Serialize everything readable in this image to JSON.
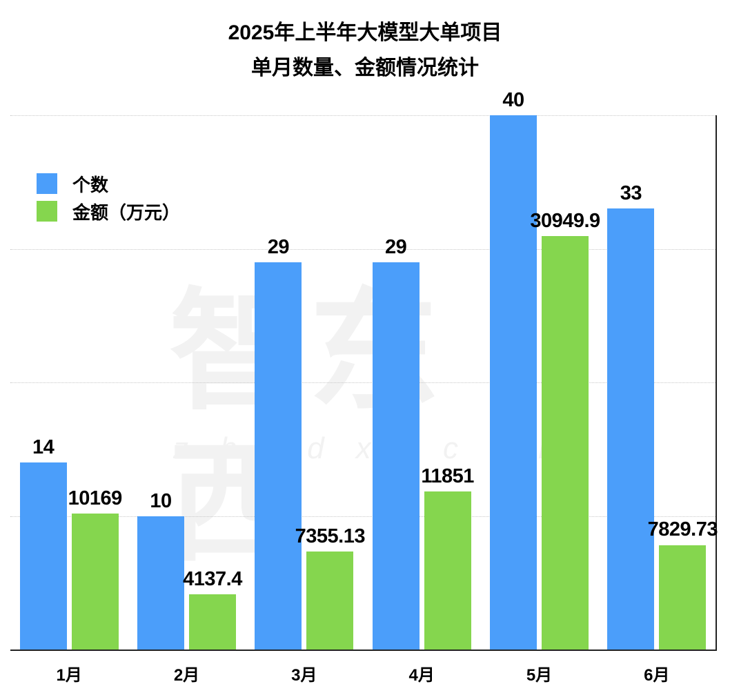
{
  "chart_data": {
    "type": "bar",
    "title": "2025年上半年大模型大单项目",
    "subtitle": "单月数量、金额情况统计",
    "categories": [
      "1月",
      "2月",
      "3月",
      "4月",
      "5月",
      "6月"
    ],
    "series": [
      {
        "name": "个数",
        "axis": "left",
        "color": "#4B9EFA",
        "values": [
          14,
          10,
          29,
          29,
          40,
          33
        ],
        "labels": [
          "14",
          "10",
          "29",
          "29",
          "40",
          "33"
        ]
      },
      {
        "name": "金额（万元）",
        "axis": "right",
        "color": "#85D64E",
        "values": [
          10169,
          4137.4,
          7355.13,
          11851,
          30949.9,
          7829.73
        ],
        "labels": [
          "10169",
          "4137.4",
          "7355.13",
          "11851",
          "30949.9",
          "7829.73"
        ]
      }
    ],
    "xlabel": "",
    "ylabel": "",
    "ylim_left": [
      0,
      40
    ],
    "ylim_right": [
      0,
      40000
    ],
    "grid": true,
    "legend_position": "upper-left",
    "watermark": {
      "cn": "智东西",
      "en": "zhidx.com"
    }
  }
}
